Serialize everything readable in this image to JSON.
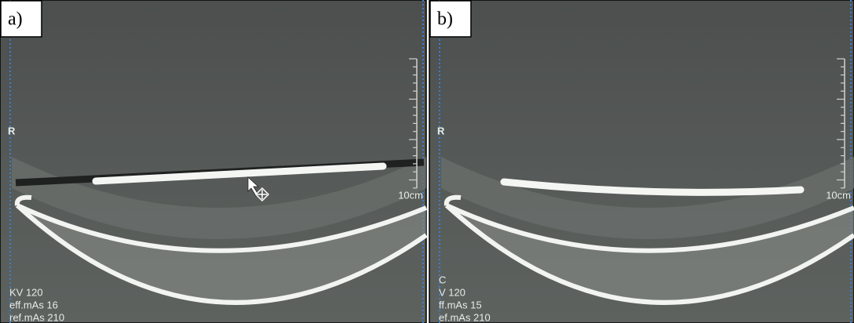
{
  "panels": [
    {
      "label": "a)",
      "orientation": "R",
      "scale": "10cm",
      "info": [
        "KV 120",
        "eff.mAs 16",
        "ref.mAs 210"
      ]
    },
    {
      "label": "b)",
      "orientation": "R",
      "scale": "10cm",
      "info": [
        "C",
        "V 120",
        "ff.mAs 15",
        "ef.mAs 210"
      ]
    }
  ]
}
